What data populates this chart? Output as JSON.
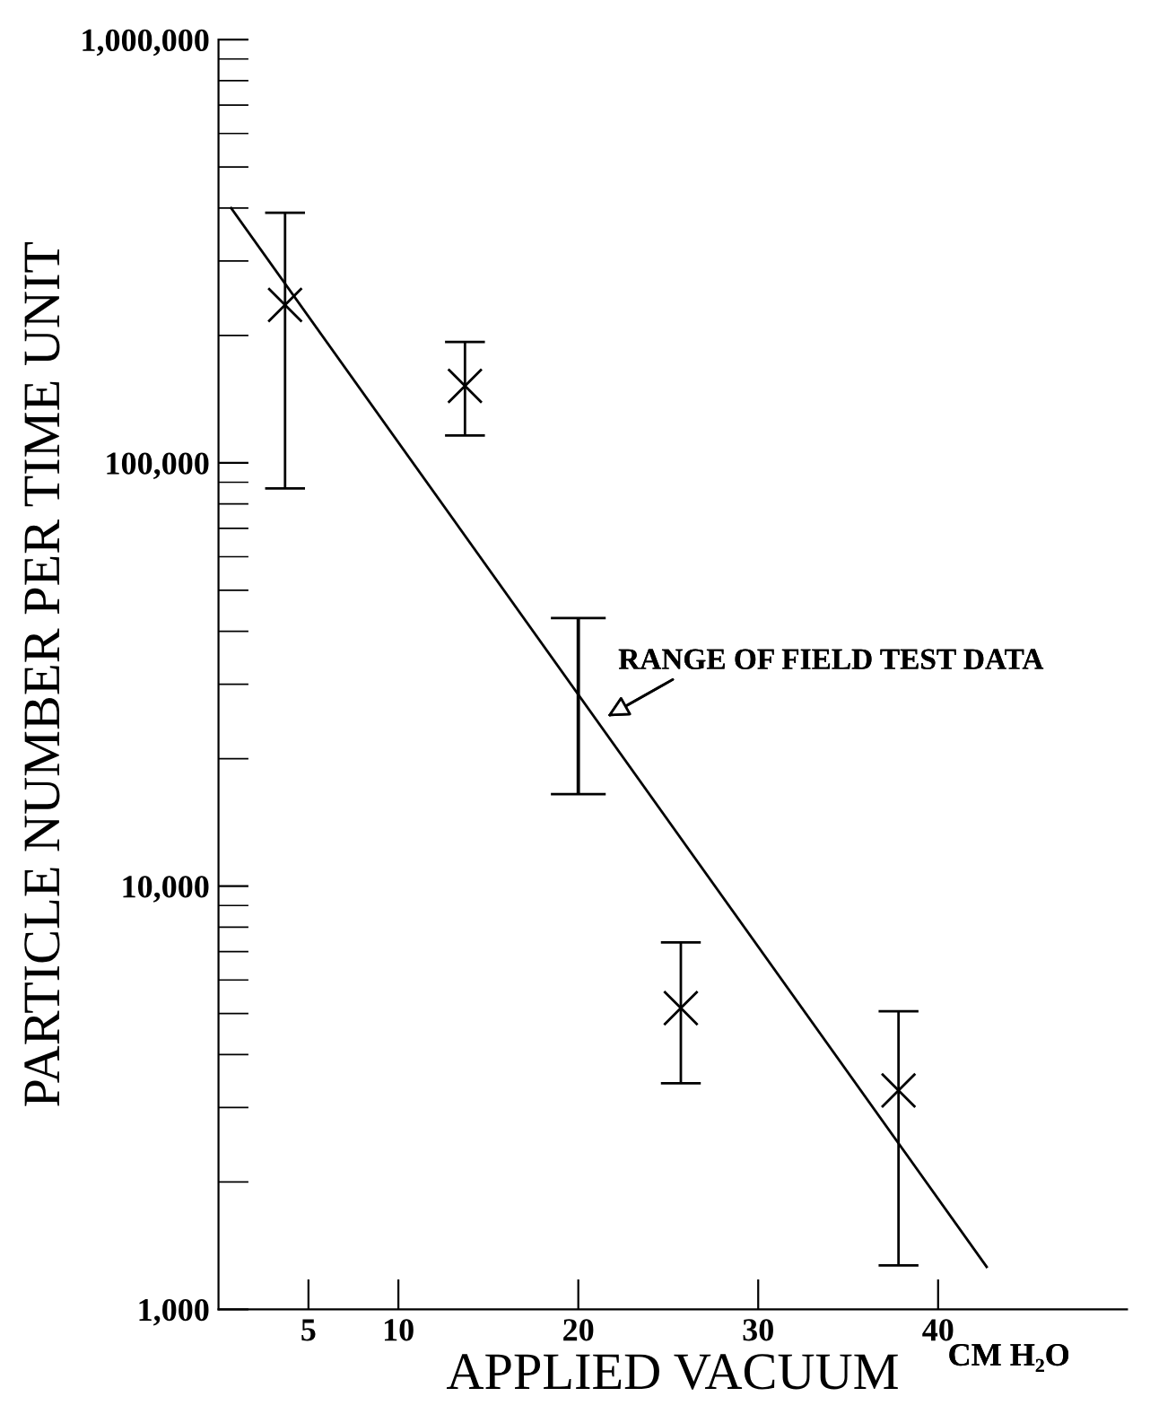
{
  "chart_data": {
    "type": "scatter",
    "xlabel": "APPLIED VACUUM",
    "ylabel": "PARTICLE NUMBER PER TIME UNIT",
    "log": "y",
    "grid": false,
    "legend": false,
    "xlim": [
      0,
      50.5
    ],
    "xticks": [
      5,
      10,
      20,
      30,
      40
    ],
    "ylim": [
      1000,
      1000000
    ],
    "yticks": [
      {
        "value": 1000,
        "label": "1,000"
      },
      {
        "value": 10000,
        "label": "10,000"
      },
      {
        "value": 100000,
        "label": "100,000"
      },
      {
        "value": 1000000,
        "label": "1,000,000"
      }
    ],
    "annotations": [
      "RANGE OF FIELD TEST DATA",
      "CM H₂O"
    ],
    "series": [
      {
        "color": "#000000",
        "marker": "cross",
        "x": [
          3.7,
          13.7,
          25.7,
          37.8
        ],
        "values": [
          236000,
          152000,
          5150,
          3290
        ],
        "errors": [
          [
            87000,
            390000
          ],
          [
            116000,
            193000
          ],
          [
            3420,
            7360
          ],
          [
            1270,
            5060
          ]
        ]
      },
      {
        "type": "bar",
        "color": "#000000",
        "x": [
          20
        ],
        "base": [
          16500
        ],
        "values": [
          26500
        ]
      },
      {
        "type": "line",
        "color": "#000000",
        "marker": "none",
        "line_style": "solid",
        "x": [
          0.7,
          42.7
        ],
        "values": [
          400000,
          1260
        ]
      }
    ]
  }
}
